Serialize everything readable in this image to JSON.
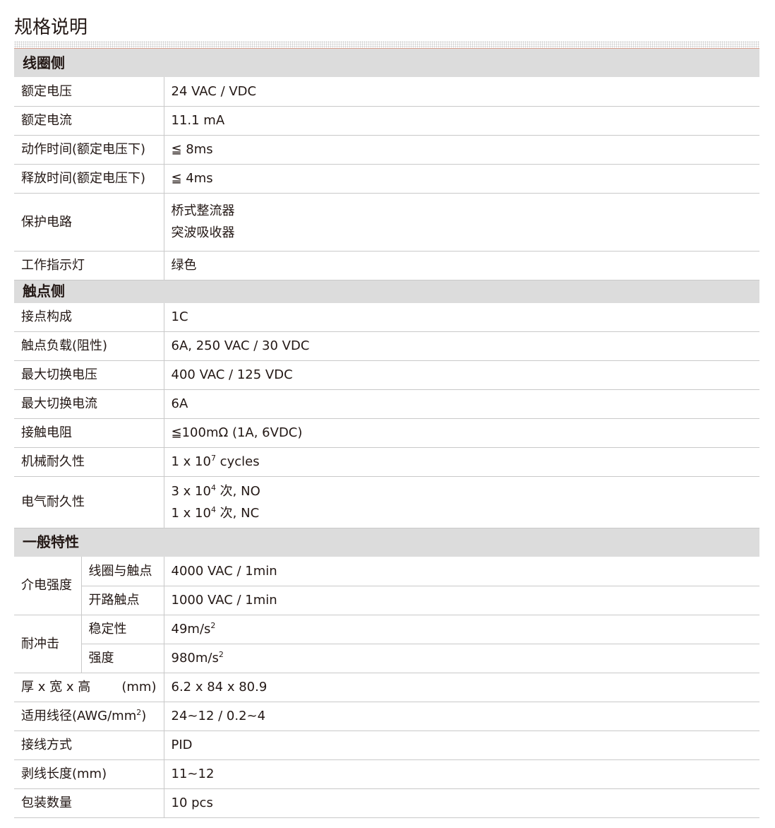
{
  "title": "规格说明",
  "coil": {
    "heading": "线圈侧",
    "rows": [
      {
        "label": "额定电压",
        "value": "24 VAC / VDC"
      },
      {
        "label": "额定电流",
        "value": "11.1 mA"
      },
      {
        "label": "动作时间(额定电压下)",
        "value": "≦ 8ms"
      },
      {
        "label": "释放时间(额定电压下)",
        "value": "≦ 4ms"
      },
      {
        "label": "保护电路",
        "value": [
          "桥式整流器",
          "突波吸收器"
        ]
      },
      {
        "label": "工作指示灯",
        "value": "绿色"
      }
    ]
  },
  "contact": {
    "heading": "触点侧",
    "rows": [
      {
        "label": "接点构成",
        "value": "1C"
      },
      {
        "label": "触点负载(阻性)",
        "value": "6A, 250 VAC / 30 VDC"
      },
      {
        "label": "最大切换电压",
        "value": "400 VAC / 125 VDC"
      },
      {
        "label": "最大切换电流",
        "value": "6A"
      },
      {
        "label": "接触电阻",
        "value": "≦100mΩ (1A, 6VDC)"
      },
      {
        "label": "机械耐久性",
        "value": {
          "pre": "1 x 10",
          "sup": "7",
          "post": " cycles"
        }
      },
      {
        "label": "电气耐久性",
        "value": [
          {
            "pre": "3 x 10",
            "sup": "4",
            "post": " 次, NO"
          },
          {
            "pre": "1 x 10",
            "sup": "4",
            "post": " 次, NC"
          }
        ]
      }
    ]
  },
  "general": {
    "heading": "一般特性",
    "dielectric": {
      "label": "介电强度",
      "sub": [
        {
          "label": "线圈与触点",
          "value": "4000 VAC / 1min"
        },
        {
          "label": "开路触点",
          "value": "1000 VAC / 1min"
        }
      ]
    },
    "shock": {
      "label": "耐冲击",
      "sub": [
        {
          "label": "稳定性",
          "pre": "49m/s",
          "sup": "2"
        },
        {
          "label": "强度",
          "pre": "980m/s",
          "sup": "2"
        }
      ]
    },
    "dims": {
      "label": "厚 x 宽 x 高",
      "unit": "(mm)",
      "value": "6.2 x 84 x 80.9"
    },
    "wire": {
      "label_pre": "适用线径(AWG/mm",
      "label_sup": "2",
      "label_post": ")",
      "value": "24~12 / 0.2~4"
    },
    "rows": [
      {
        "label": "接线方式",
        "value": "PID"
      },
      {
        "label": "剥线长度(mm)",
        "value": "11~12"
      },
      {
        "label": "包装数量",
        "value": "10 pcs"
      }
    ]
  }
}
